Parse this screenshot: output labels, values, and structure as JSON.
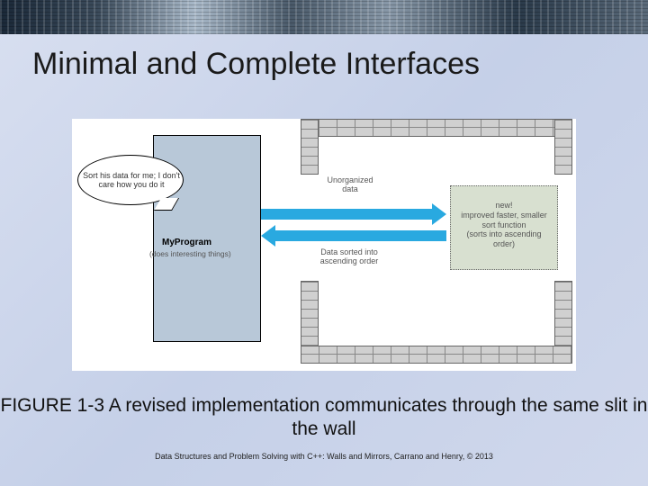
{
  "slide": {
    "title": "Minimal and Complete Interfaces",
    "caption": "FIGURE 1-3 A revised implementation communicates through the same slit in the wall",
    "credit": "Data Structures and Problem Solving with C++: Walls and Mirrors, Carrano and Henry, ©  2013"
  },
  "diagram": {
    "type": "flowchart",
    "background_color": "#ffffff",
    "program_box": {
      "color": "#b8c8d8",
      "speech": "Sort his data for me; I don't care how you do it",
      "label": "MyProgram",
      "sublabel": "(does interesting things)"
    },
    "wall": {
      "brick_color": "#d0d0d0",
      "mortar_color": "#888888",
      "slit_top_label": "Unorganized data",
      "slit_bottom_label": "Data sorted into ascending order"
    },
    "arrows": {
      "color": "#29a9e0",
      "right": "Unorganized data",
      "left": "Data sorted into ascending order"
    },
    "sort_box": {
      "color": "#d8e0d0",
      "line1": "new!",
      "line2": "improved faster, smaller",
      "line3": "sort function",
      "line4": "(sorts into ascending order)"
    }
  },
  "style": {
    "title_fontsize": 34,
    "caption_fontsize": 21,
    "credit_fontsize": 9,
    "bg_gradient": [
      "#d8dff0",
      "#c5d0e8",
      "#d0d8ec"
    ]
  }
}
